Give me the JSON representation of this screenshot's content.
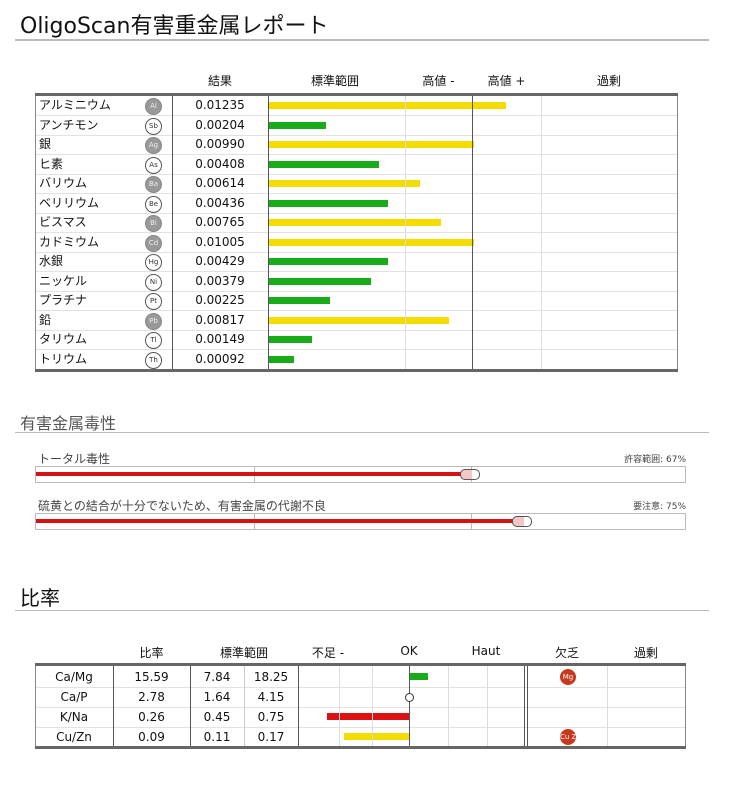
{
  "title": "OligoScan有害重金属レポート",
  "metals": {
    "headers": {
      "result": "結果",
      "range": "標準範囲",
      "high_minus": "高値 -",
      "high_plus": "高値 +",
      "excess": "過剰"
    },
    "colors": {
      "yellow": "#f5dc00",
      "green": "#1aab1a"
    },
    "rows": [
      {
        "name": "アルミニウム",
        "symbol": "Al",
        "filled": true,
        "value": "0.01235",
        "level": 0.58,
        "status": "yellow"
      },
      {
        "name": "アンチモン",
        "symbol": "Sb",
        "filled": false,
        "value": "0.00204",
        "level": 0.14,
        "status": "green"
      },
      {
        "name": "銀",
        "symbol": "Ag",
        "filled": true,
        "value": "0.00990",
        "level": 0.5,
        "status": "yellow"
      },
      {
        "name": "ヒ素",
        "symbol": "As",
        "filled": false,
        "value": "0.00408",
        "level": 0.27,
        "status": "green"
      },
      {
        "name": "バリウム",
        "symbol": "Ba",
        "filled": true,
        "value": "0.00614",
        "level": 0.37,
        "status": "yellow"
      },
      {
        "name": "ベリリウム",
        "symbol": "Be",
        "filled": false,
        "value": "0.00436",
        "level": 0.29,
        "status": "green"
      },
      {
        "name": "ビスマス",
        "symbol": "Bi",
        "filled": true,
        "value": "0.00765",
        "level": 0.42,
        "status": "yellow"
      },
      {
        "name": "カドミウム",
        "symbol": "Cd",
        "filled": true,
        "value": "0.01005",
        "level": 0.5,
        "status": "yellow"
      },
      {
        "name": "水銀",
        "symbol": "Hg",
        "filled": false,
        "value": "0.00429",
        "level": 0.29,
        "status": "green"
      },
      {
        "name": "ニッケル",
        "symbol": "Ni",
        "filled": false,
        "value": "0.00379",
        "level": 0.25,
        "status": "green"
      },
      {
        "name": "プラチナ",
        "symbol": "Pt",
        "filled": false,
        "value": "0.00225",
        "level": 0.15,
        "status": "green"
      },
      {
        "name": "鉛",
        "symbol": "Pb",
        "filled": true,
        "value": "0.00817",
        "level": 0.44,
        "status": "yellow"
      },
      {
        "name": "タリウム",
        "symbol": "Tl",
        "filled": false,
        "value": "0.00149",
        "level": 0.105,
        "status": "green"
      },
      {
        "name": "トリウム",
        "symbol": "Th",
        "filled": false,
        "value": "0.00092",
        "level": 0.06,
        "status": "green"
      }
    ]
  },
  "toxicity": {
    "title": "有害金属毒性",
    "items": [
      {
        "label": "トータル毒性",
        "note": "許容範囲: 67%",
        "percent": 67
      },
      {
        "label": "硫黄との結合が十分でないため、有害金属の代謝不良",
        "note": "要注意: 75%",
        "percent": 75
      }
    ]
  },
  "ratios": {
    "title": "比率",
    "headers": {
      "ratio": "比率",
      "range": "標準範囲",
      "low": "不足 -",
      "ok": "OK",
      "high": "Haut",
      "deficit": "欠乏",
      "excess": "過剰"
    },
    "rows": [
      {
        "name": "Ca/Mg",
        "ratio": "15.59",
        "low": "7.84",
        "high": "18.25",
        "bar": {
          "from": 0,
          "to": 0.17,
          "color": "#1aab1a"
        },
        "deficit_badge": "Mg"
      },
      {
        "name": "Ca/P",
        "ratio": "2.78",
        "low": "1.64",
        "high": "4.15",
        "bar": null,
        "deficit_badge": ""
      },
      {
        "name": "K/Na",
        "ratio": "0.26",
        "low": "0.45",
        "high": "0.75",
        "bar": {
          "from": -0.75,
          "to": 0,
          "color": "#dd1111"
        },
        "deficit_badge": ""
      },
      {
        "name": "Cu/Zn",
        "ratio": "0.09",
        "low": "0.11",
        "high": "0.17",
        "bar": {
          "from": -0.59,
          "to": 0,
          "color": "#f5dc00"
        },
        "deficit_badge": "Cu Zn"
      }
    ]
  }
}
